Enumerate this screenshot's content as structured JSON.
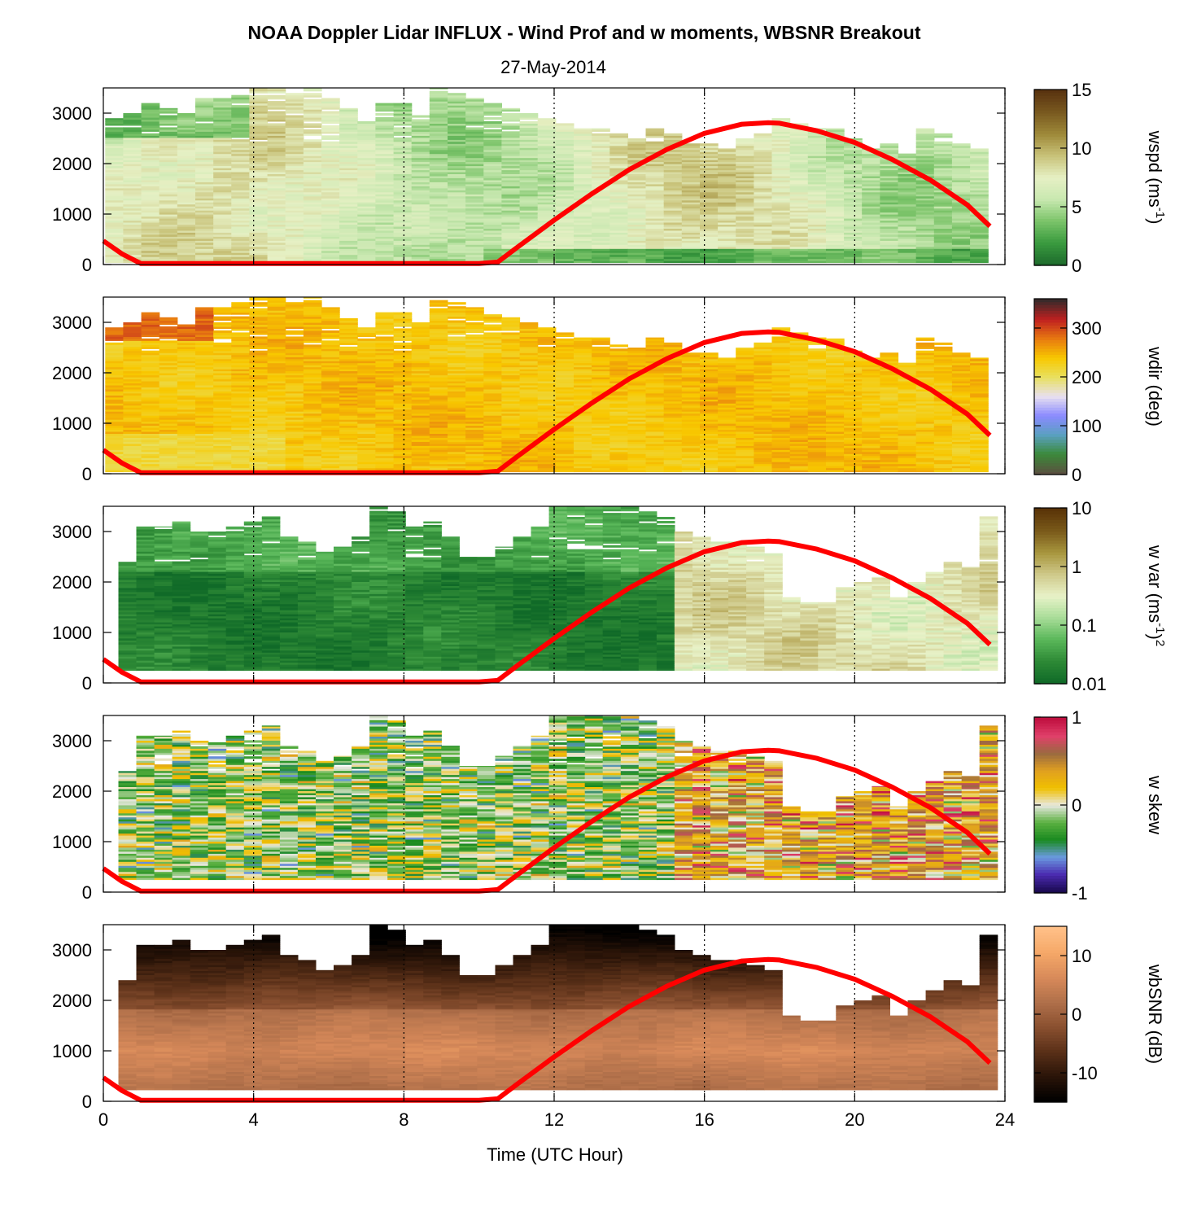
{
  "title": "NOAA Doppler Lidar INFLUX - Wind Prof and w moments, WBSNR Breakout",
  "subtitle": "27-May-2014",
  "chart_data": {
    "type": "heatmap",
    "xlabel": "Time (UTC Hour)",
    "xlim": [
      0,
      24
    ],
    "xticks": [
      "0",
      "4",
      "8",
      "12",
      "16",
      "20",
      "24"
    ],
    "xtick_values": [
      0,
      4,
      8,
      12,
      16,
      20,
      24
    ],
    "ylim": [
      0,
      3500
    ],
    "yticks": [
      "0",
      "1000",
      "2000",
      "3000"
    ],
    "ytick_values": [
      0,
      1000,
      2000,
      3000
    ],
    "vertical_dotted_lines": [
      4,
      8,
      12,
      16,
      20,
      24
    ],
    "line_color": "#ff0000",
    "overlay_line": {
      "x": [
        0,
        0.5,
        1,
        2,
        4,
        6,
        8,
        10,
        10.5,
        11,
        12,
        13,
        14,
        15,
        16,
        17,
        17.7,
        18,
        19,
        20,
        21,
        22,
        23,
        23.6
      ],
      "y": [
        470,
        210,
        20,
        20,
        20,
        20,
        20,
        20,
        50,
        330,
        880,
        1400,
        1880,
        2280,
        2600,
        2780,
        2810,
        2800,
        2650,
        2420,
        2080,
        1680,
        1180,
        760
      ]
    },
    "panels": [
      {
        "name": "wspd",
        "colorbar_label": "wspd (ms",
        "colorbar_sup": "-1",
        "colorbar_tail": ")",
        "colorbar_ticks": [
          "0",
          "5",
          "10",
          "15"
        ],
        "colorbar_tick_values": [
          0,
          5,
          10,
          15
        ],
        "colorbar_range": [
          0,
          15
        ],
        "colormap": [
          "#1e6b2d",
          "#3a9b3f",
          "#7cc46a",
          "#c8e8b0",
          "#e6f0c4",
          "#c9c37a",
          "#9f8a3a",
          "#7a5a20",
          "#5a3410"
        ]
      },
      {
        "name": "wdir",
        "colorbar_label": "wdir (deg)",
        "colorbar_sup": "",
        "colorbar_tail": "",
        "colorbar_ticks": [
          "0",
          "100",
          "200",
          "300"
        ],
        "colorbar_tick_values": [
          0,
          100,
          200,
          300
        ],
        "colorbar_range": [
          0,
          360
        ],
        "colormap": [
          "#5a5040",
          "#3b8a3a",
          "#5aa0c0",
          "#8a8aff",
          "#e8e0f0",
          "#e8e060",
          "#f8c800",
          "#e87a10",
          "#c02020",
          "#3a2a2a"
        ]
      },
      {
        "name": "w var",
        "colorbar_label": "w var (ms",
        "colorbar_sup": "-1",
        "colorbar_tail": ")",
        "colorbar_sup2": "2",
        "colorbar_ticks": [
          "0.01",
          "0.1",
          "1",
          "10"
        ],
        "colorbar_tick_values": [
          0.01,
          0.1,
          1,
          10
        ],
        "colorbar_range": [
          0.01,
          10
        ],
        "colorbar_log": true,
        "colormap": [
          "#106a28",
          "#2e8a36",
          "#5ab85a",
          "#a8dc98",
          "#e8f2c8",
          "#cfc98a",
          "#a8963e",
          "#7a5a1a",
          "#5a3408"
        ]
      },
      {
        "name": "w skew",
        "colorbar_label": "w skew",
        "colorbar_sup": "",
        "colorbar_tail": "",
        "colorbar_ticks": [
          "-1",
          "0",
          "1"
        ],
        "colorbar_tick_values": [
          -1,
          0,
          1
        ],
        "colorbar_range": [
          -1,
          1
        ],
        "colormap": [
          "#1a0a50",
          "#4a2ab0",
          "#6a9ae0",
          "#1a8a20",
          "#5ab040",
          "#e8e8e0",
          "#f0c000",
          "#e0a020",
          "#9a6a40",
          "#e0406a",
          "#c01040"
        ]
      },
      {
        "name": "wbSNR",
        "colorbar_label": "wbSNR (dB)",
        "colorbar_sup": "",
        "colorbar_tail": "",
        "colorbar_ticks": [
          "-10",
          "0",
          "10"
        ],
        "colorbar_tick_values": [
          -10,
          0,
          10
        ],
        "colorbar_range": [
          -15,
          15
        ],
        "colormap": [
          "#000000",
          "#2a1408",
          "#5a3018",
          "#8a5030",
          "#b0704a",
          "#d88a5a",
          "#f5a868",
          "#ffc088"
        ]
      }
    ]
  }
}
